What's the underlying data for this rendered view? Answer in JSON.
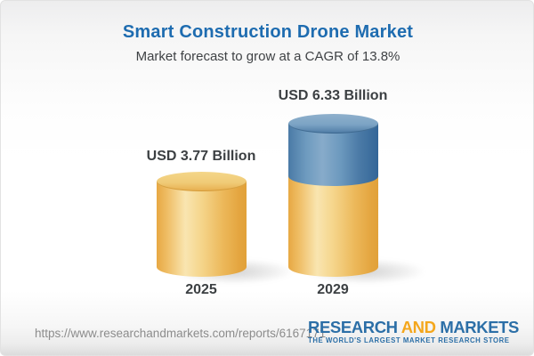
{
  "header": {
    "title": "Smart Construction Drone Market",
    "subtitle": "Market forecast to grow at a CAGR of 13.8%"
  },
  "chart_data": {
    "type": "bar",
    "subtype": "3d-cylinder",
    "title": "Smart Construction Drone Market",
    "subtitle": "Market forecast to grow at a CAGR of 13.8%",
    "categories": [
      "2025",
      "2029"
    ],
    "values": [
      3.77,
      6.33
    ],
    "value_labels": [
      "USD 3.77 Billion",
      "USD 6.33 Billion"
    ],
    "unit": "USD Billion",
    "cagr_percent": 13.8,
    "series": [
      {
        "name": "base-value",
        "values": [
          3.77,
          3.77
        ],
        "color": "#F0C269"
      },
      {
        "name": "forecast-growth",
        "values": [
          0,
          2.56
        ],
        "color": "#5D8BB4"
      }
    ],
    "legend": "none",
    "grid": false,
    "axes": "hidden"
  },
  "footer": {
    "url": "https://www.researchandmarkets.com/reports/6167171",
    "logo_research": "RESEARCH",
    "logo_and": "AND",
    "logo_markets": "MARKETS",
    "logo_tagline": "THE WORLD'S LARGEST MARKET RESEARCH STORE"
  },
  "colors": {
    "title_blue": "#1E6CB0",
    "text_dark": "#3C4043",
    "bar_yellow": "#F0C269",
    "bar_blue": "#5D8BB4",
    "url_gray": "#8C8C8C",
    "logo_blue": "#2C6FA7",
    "logo_orange": "#F4A71D"
  }
}
